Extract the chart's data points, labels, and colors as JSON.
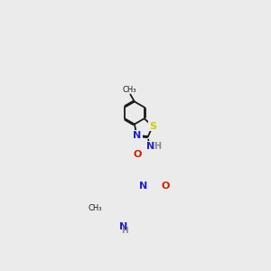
{
  "background_color": "#ebebeb",
  "bond_color": "#1a1a1a",
  "atom_colors": {
    "N": "#2222cc",
    "O": "#cc2200",
    "S": "#cccc00",
    "H": "#888888",
    "C": "#1a1a1a"
  }
}
